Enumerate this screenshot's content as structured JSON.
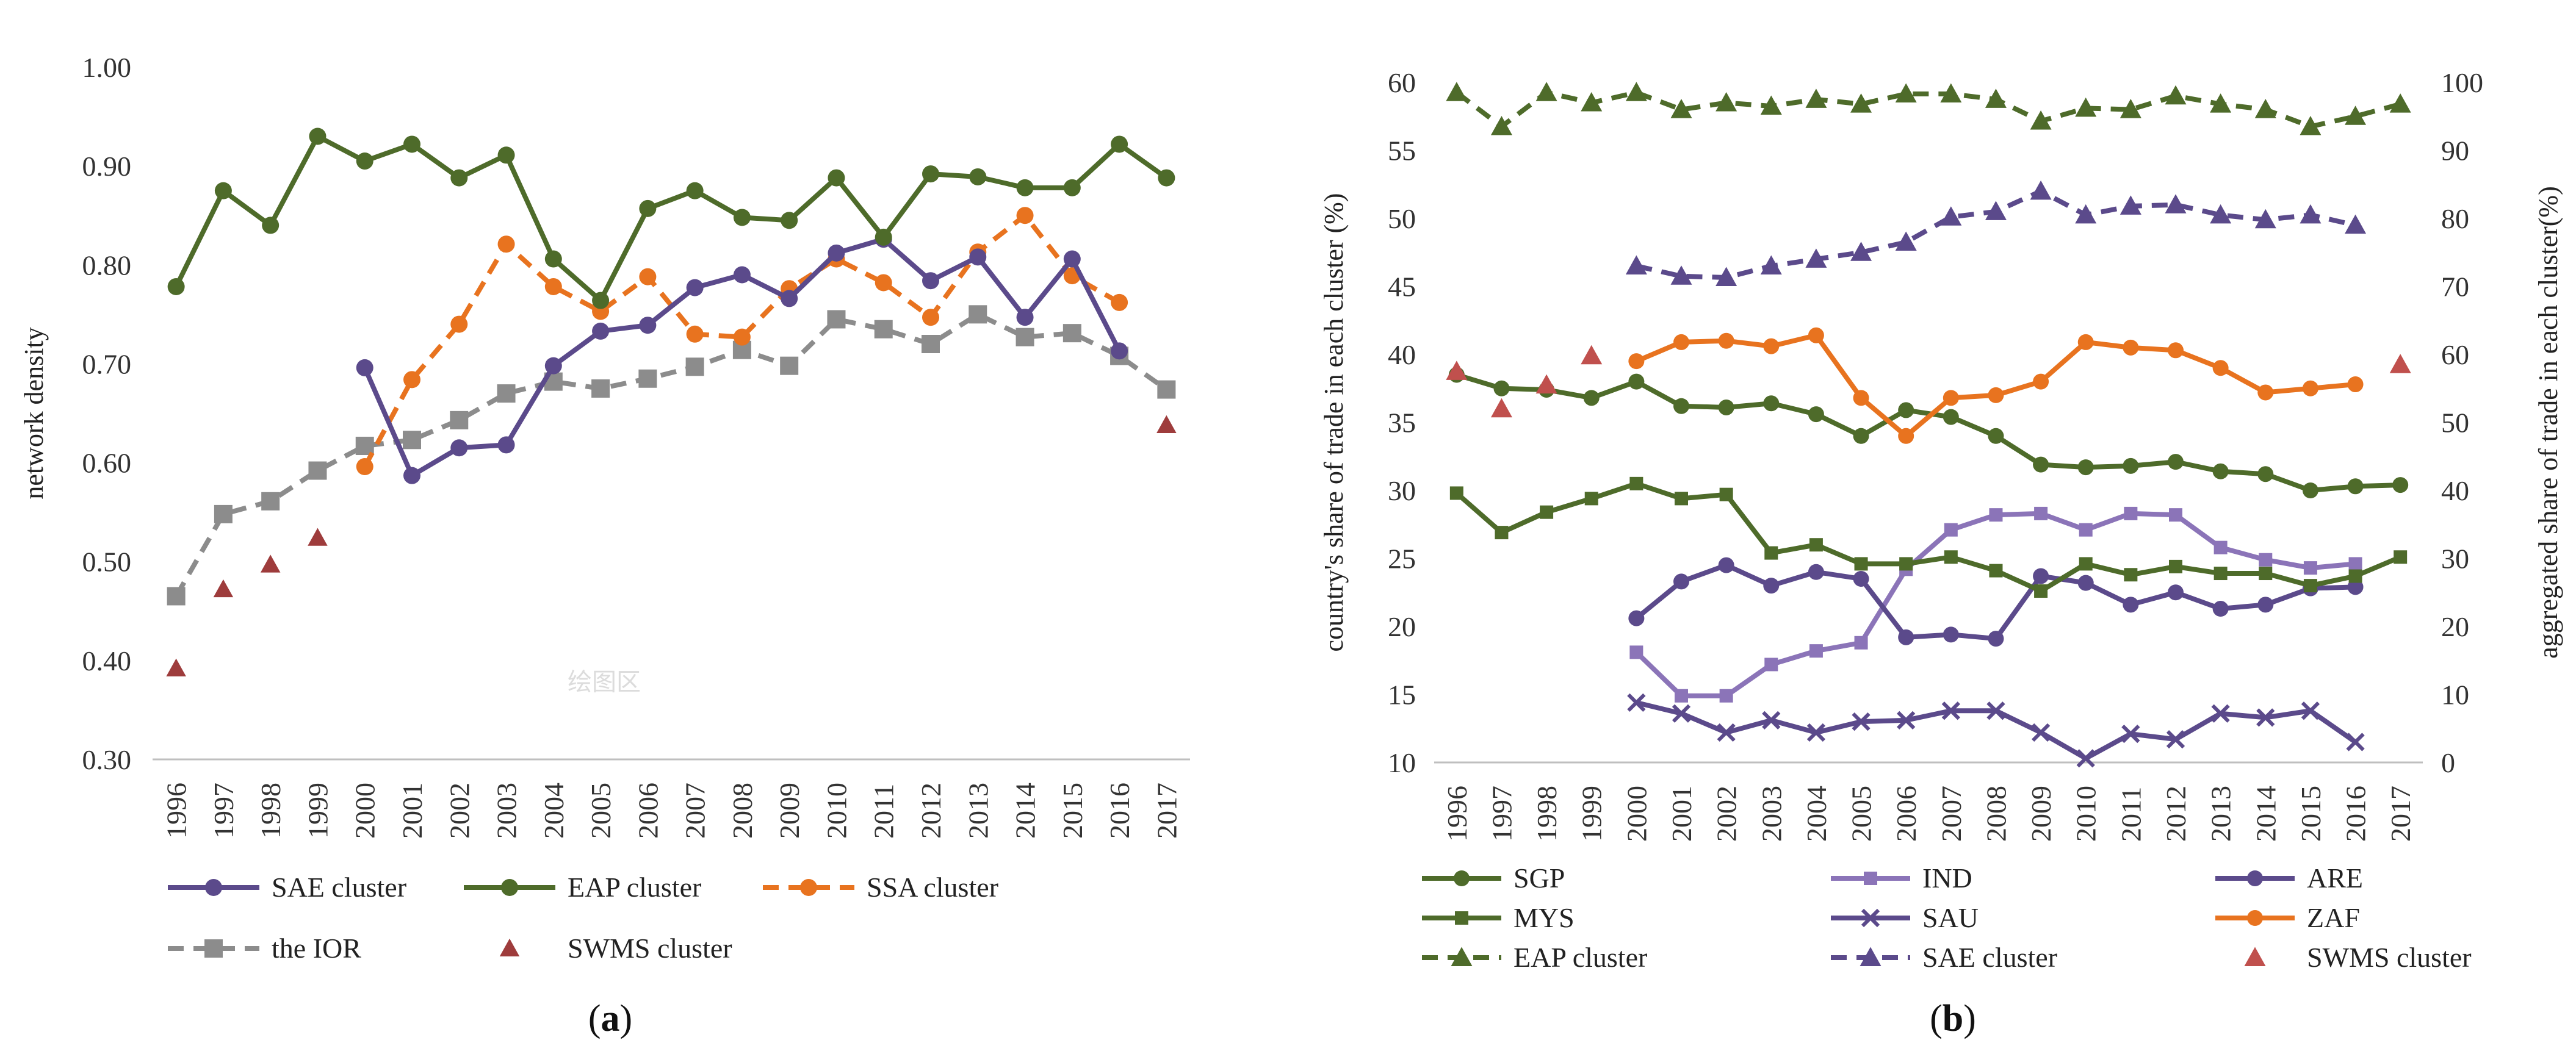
{
  "chart_data": [
    {
      "id": "a",
      "type": "line",
      "panel_label": "(a)",
      "ylabel": "network density",
      "ylim": [
        0.3,
        1.0
      ],
      "yticks": [
        "0.30",
        "0.40",
        "0.50",
        "0.60",
        "0.70",
        "0.80",
        "0.90",
        "1.00"
      ],
      "categories": [
        "1996",
        "1997",
        "1998",
        "1999",
        "2000",
        "2001",
        "2002",
        "2003",
        "2004",
        "2005",
        "2006",
        "2007",
        "2008",
        "2009",
        "2010",
        "2011",
        "2012",
        "2013",
        "2014",
        "2015",
        "2016",
        "2017"
      ],
      "watermark": "绘图区",
      "series": [
        {
          "name": "SAE cluster",
          "color": "#5b4a8b",
          "style": "solid",
          "marker": "circle",
          "values": [
            null,
            null,
            null,
            null,
            0.696,
            0.587,
            0.615,
            0.618,
            0.698,
            0.733,
            0.739,
            0.777,
            0.79,
            0.766,
            0.812,
            0.826,
            0.784,
            0.808,
            0.747,
            0.806,
            0.713,
            null
          ]
        },
        {
          "name": "EAP cluster",
          "color": "#4e6b2a",
          "style": "solid",
          "marker": "circle",
          "values": [
            0.778,
            0.875,
            0.84,
            0.93,
            0.905,
            0.922,
            0.888,
            0.911,
            0.806,
            0.764,
            0.857,
            0.875,
            0.848,
            0.845,
            0.888,
            0.828,
            0.892,
            0.889,
            0.878,
            0.878,
            0.922,
            0.888
          ]
        },
        {
          "name": "SSA cluster",
          "color": "#e8731f",
          "style": "dashed",
          "marker": "circle",
          "values": [
            null,
            null,
            null,
            null,
            0.596,
            0.684,
            0.74,
            0.821,
            0.778,
            0.753,
            0.788,
            0.73,
            0.727,
            0.776,
            0.806,
            0.782,
            0.747,
            0.813,
            0.85,
            0.789,
            0.762,
            null
          ]
        },
        {
          "name": "the IOR",
          "color": "#8c8c8c",
          "style": "dashed",
          "marker": "square",
          "values": [
            0.465,
            0.548,
            0.561,
            0.592,
            0.617,
            0.623,
            0.643,
            0.67,
            0.682,
            0.675,
            0.685,
            0.697,
            0.714,
            0.698,
            0.745,
            0.735,
            0.72,
            0.75,
            0.727,
            0.731,
            0.708,
            0.674
          ]
        },
        {
          "name": "SWMS cluster",
          "color": "#9e3c3c",
          "style": "none",
          "marker": "triangle",
          "values": [
            0.392,
            0.472,
            0.497,
            0.524,
            null,
            null,
            null,
            null,
            null,
            null,
            null,
            null,
            null,
            null,
            null,
            null,
            null,
            null,
            null,
            null,
            null,
            0.638
          ]
        }
      ]
    },
    {
      "id": "b",
      "type": "line",
      "panel_label": "(b)",
      "ylabel": "country's share of trade in each cluster (%)",
      "y2label": "aggregated share of trade in each cluster(%)",
      "ylim": [
        10,
        60
      ],
      "y2lim": [
        0,
        100
      ],
      "yticks": [
        "10",
        "15",
        "20",
        "25",
        "30",
        "35",
        "40",
        "45",
        "50",
        "55",
        "60"
      ],
      "y2ticks": [
        "0",
        "10",
        "20",
        "30",
        "40",
        "50",
        "60",
        "70",
        "80",
        "90",
        "100"
      ],
      "categories": [
        "1996",
        "1997",
        "1998",
        "1999",
        "2000",
        "2001",
        "2002",
        "2003",
        "2004",
        "2005",
        "2006",
        "2007",
        "2008",
        "2009",
        "2010",
        "2011",
        "2012",
        "2013",
        "2014",
        "2015",
        "2016",
        "2017"
      ],
      "series": [
        {
          "name": "SGP",
          "axis": "left",
          "color": "#4e6b2a",
          "style": "solid",
          "marker": "circle",
          "values": [
            38.5,
            37.5,
            37.4,
            36.8,
            38.0,
            36.2,
            36.1,
            36.4,
            35.6,
            34.0,
            35.9,
            35.4,
            34.0,
            31.9,
            31.7,
            31.8,
            32.1,
            31.4,
            31.2,
            30.0,
            30.3,
            30.4
          ]
        },
        {
          "name": "IND",
          "axis": "left",
          "color": "#8b74b8",
          "style": "solid",
          "marker": "square",
          "values": [
            null,
            null,
            null,
            null,
            18.1,
            14.9,
            14.9,
            17.2,
            18.2,
            18.8,
            24.2,
            27.1,
            28.2,
            28.3,
            27.1,
            28.3,
            28.2,
            25.8,
            24.9,
            24.3,
            24.6,
            null
          ]
        },
        {
          "name": "ARE",
          "axis": "left",
          "color": "#5b4a8b",
          "style": "solid",
          "marker": "circle",
          "values": [
            null,
            null,
            null,
            null,
            20.6,
            23.3,
            24.5,
            23.0,
            24.0,
            23.5,
            19.2,
            19.4,
            19.1,
            23.7,
            23.2,
            21.6,
            22.5,
            21.3,
            21.6,
            22.8,
            22.9,
            null
          ]
        },
        {
          "name": "MYS",
          "axis": "left",
          "color": "#4e6b2a",
          "style": "solid",
          "marker": "square",
          "values": [
            29.8,
            26.9,
            28.4,
            29.4,
            30.5,
            29.4,
            29.7,
            25.4,
            26.0,
            24.6,
            24.6,
            25.1,
            24.1,
            22.6,
            24.6,
            23.8,
            24.4,
            23.9,
            23.9,
            23.0,
            23.7,
            25.1
          ]
        },
        {
          "name": "SAU",
          "axis": "left",
          "color": "#5b4a8b",
          "style": "solid",
          "marker": "x",
          "values": [
            null,
            null,
            null,
            null,
            14.4,
            13.6,
            12.2,
            13.1,
            12.2,
            13.0,
            13.1,
            13.8,
            13.8,
            12.2,
            10.3,
            12.1,
            11.7,
            13.6,
            13.3,
            13.8,
            11.5,
            null
          ]
        },
        {
          "name": "ZAF",
          "axis": "left",
          "color": "#e8731f",
          "style": "solid",
          "marker": "circle",
          "values": [
            null,
            null,
            null,
            null,
            39.5,
            40.9,
            41.0,
            40.6,
            41.4,
            36.8,
            34.0,
            36.8,
            37.0,
            38.0,
            40.9,
            40.5,
            40.3,
            39.0,
            37.2,
            37.5,
            37.8,
            null
          ]
        },
        {
          "name": "EAP cluster",
          "axis": "right",
          "color": "#4e6b2a",
          "style": "dashed",
          "marker": "triangle",
          "values": [
            98.5,
            93.5,
            98.5,
            97.0,
            98.5,
            96.0,
            97.0,
            96.5,
            97.5,
            96.8,
            98.3,
            98.3,
            97.5,
            94.3,
            96.2,
            96.0,
            98.0,
            96.8,
            96.0,
            93.5,
            95.0,
            96.8
          ]
        },
        {
          "name": "SAE cluster",
          "axis": "right",
          "color": "#5b4a8b",
          "style": "dashed",
          "marker": "triangle",
          "values": [
            null,
            null,
            null,
            null,
            73.0,
            71.5,
            71.3,
            73.0,
            74.0,
            75.0,
            76.5,
            80.2,
            81.0,
            84.0,
            80.5,
            81.8,
            82.0,
            80.5,
            79.8,
            80.5,
            79.0,
            null
          ]
        },
        {
          "name": "SWMS cluster",
          "axis": "right",
          "color": "#c0504d",
          "style": "none",
          "marker": "triangle",
          "values": [
            57.5,
            52.0,
            55.5,
            59.8,
            null,
            null,
            null,
            null,
            null,
            null,
            null,
            null,
            null,
            null,
            null,
            null,
            null,
            null,
            null,
            null,
            null,
            58.5
          ]
        }
      ]
    }
  ]
}
